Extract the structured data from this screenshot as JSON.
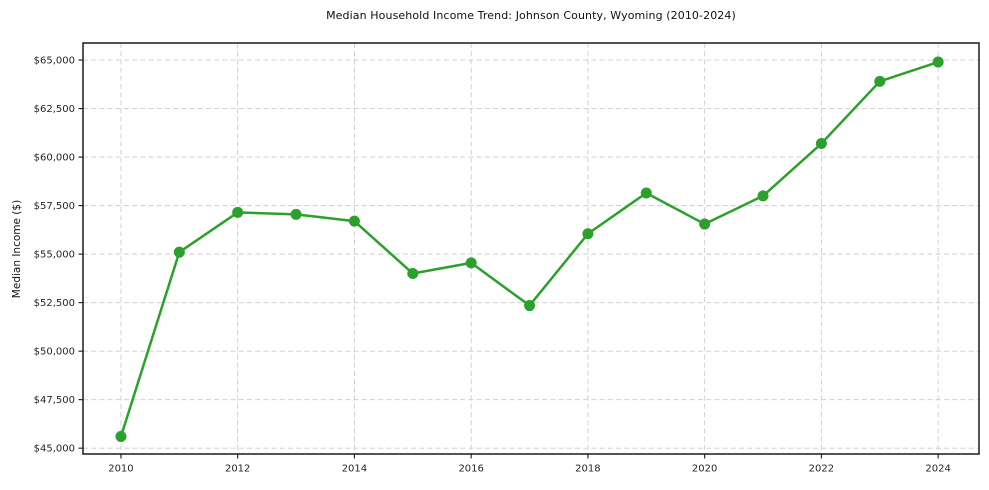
{
  "page": {
    "background_color": "#ffffff"
  },
  "chart_data": {
    "type": "line",
    "title": "Median Household Income Trend: Johnson County, Wyoming (2010-2024)",
    "xlabel": "",
    "ylabel": "Median Income ($)",
    "x": [
      2010,
      2011,
      2012,
      2013,
      2014,
      2015,
      2016,
      2017,
      2018,
      2019,
      2020,
      2021,
      2022,
      2023,
      2024
    ],
    "series": [
      {
        "color": "#2ca02c",
        "values": [
          45600,
          55100,
          57150,
          57050,
          56700,
          54000,
          54550,
          52350,
          56050,
          58150,
          56550,
          58000,
          60700,
          63900,
          64900
        ]
      }
    ],
    "xticks": [
      2010,
      2012,
      2014,
      2016,
      2018,
      2020,
      2022,
      2024
    ],
    "xtick_labels": [
      "2010",
      "2012",
      "2014",
      "2016",
      "2018",
      "2020",
      "2022",
      "2024"
    ],
    "yticks": [
      45000,
      47500,
      50000,
      52500,
      55000,
      57500,
      60000,
      62500,
      65000
    ],
    "ytick_labels": [
      "$45,000",
      "$47,500",
      "$50,000",
      "$52,500",
      "$55,000",
      "$57,500",
      "$60,000",
      "$62,500",
      "$65,000"
    ],
    "xlim": [
      2009.35,
      2024.7
    ],
    "ylim": [
      44700,
      65880
    ],
    "grid": true,
    "grid_style": "dashed",
    "grid_color": "#cccccc",
    "axis_color": "#1a1a1a",
    "tick_label_color": "#262626",
    "marker": "circle",
    "marker_size": 5.5,
    "line_width": 2.5,
    "legend": "none"
  }
}
